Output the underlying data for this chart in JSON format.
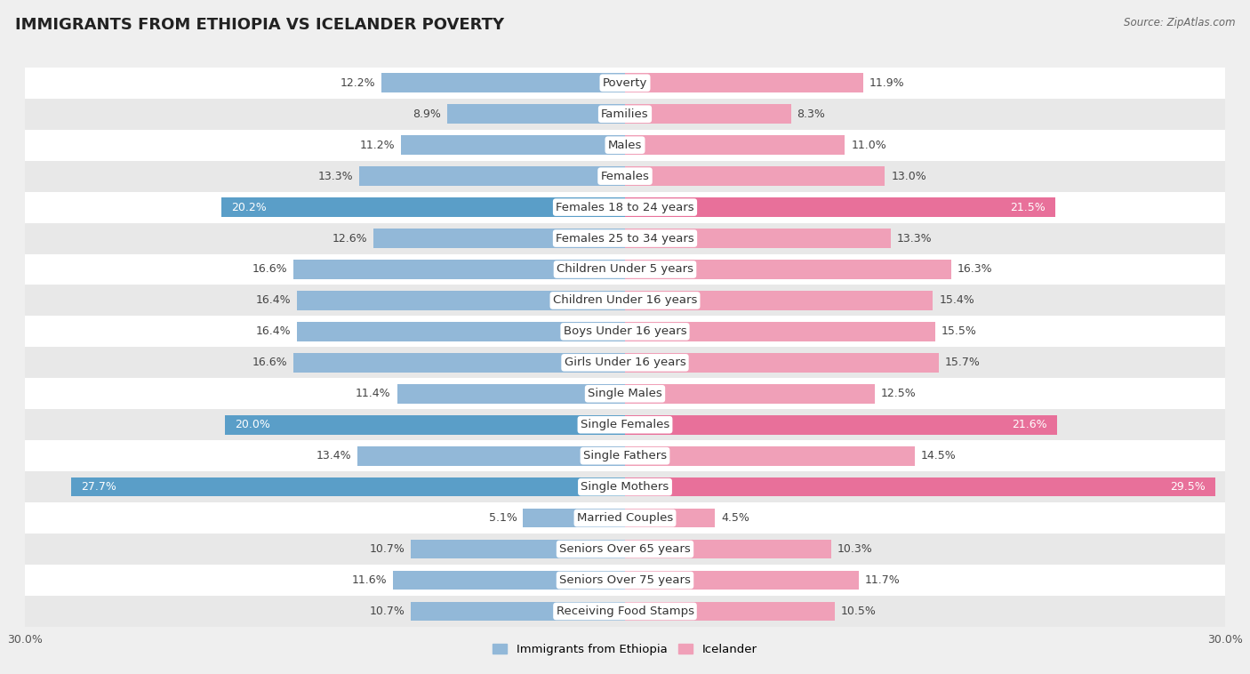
{
  "title": "IMMIGRANTS FROM ETHIOPIA VS ICELANDER POVERTY",
  "source": "Source: ZipAtlas.com",
  "categories": [
    "Poverty",
    "Families",
    "Males",
    "Females",
    "Females 18 to 24 years",
    "Females 25 to 34 years",
    "Children Under 5 years",
    "Children Under 16 years",
    "Boys Under 16 years",
    "Girls Under 16 years",
    "Single Males",
    "Single Females",
    "Single Fathers",
    "Single Mothers",
    "Married Couples",
    "Seniors Over 65 years",
    "Seniors Over 75 years",
    "Receiving Food Stamps"
  ],
  "ethiopia_values": [
    12.2,
    8.9,
    11.2,
    13.3,
    20.2,
    12.6,
    16.6,
    16.4,
    16.4,
    16.6,
    11.4,
    20.0,
    13.4,
    27.7,
    5.1,
    10.7,
    11.6,
    10.7
  ],
  "icelander_values": [
    11.9,
    8.3,
    11.0,
    13.0,
    21.5,
    13.3,
    16.3,
    15.4,
    15.5,
    15.7,
    12.5,
    21.6,
    14.5,
    29.5,
    4.5,
    10.3,
    11.7,
    10.5
  ],
  "ethiopia_color": "#92b8d8",
  "icelander_color": "#f0a0b8",
  "ethiopia_highlight_color": "#5a9ec8",
  "icelander_highlight_color": "#e8709a",
  "highlight_rows": [
    4,
    11,
    13
  ],
  "bar_height": 0.62,
  "max_value": 30.0,
  "bg_color": "#efefef",
  "row_bg_even": "#ffffff",
  "row_bg_odd": "#e8e8e8",
  "label_fontsize": 9.5,
  "value_fontsize": 9.0,
  "title_fontsize": 13
}
